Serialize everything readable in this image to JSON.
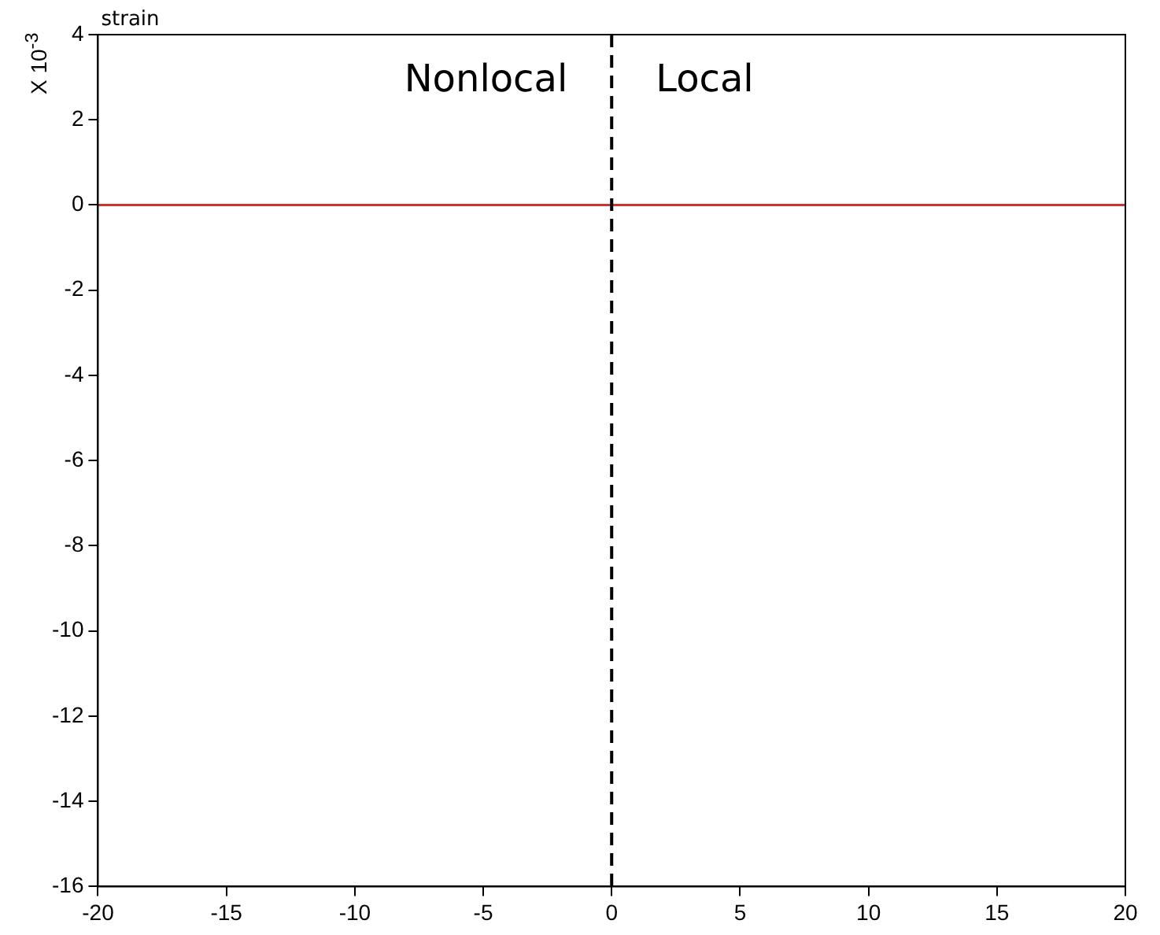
{
  "chart_data": {
    "type": "line",
    "title": "strain",
    "ylabel": "X 10$^{-3}$",
    "x": [
      -20,
      20
    ],
    "series": [
      {
        "color": "#cc3333",
        "values": [
          0,
          0
        ]
      }
    ],
    "xlim": [
      -20,
      20
    ],
    "xticks": [
      -20,
      -15,
      -10,
      -5,
      0,
      5,
      10,
      15,
      20
    ],
    "ylim": [
      -16,
      4
    ],
    "yticks": [
      -16,
      -14,
      -12,
      -10,
      -8,
      -6,
      -4,
      -2,
      0,
      2,
      4
    ],
    "ref_lines": [
      {
        "axis": "x",
        "value": 0,
        "color": "#000000",
        "line_style": "dashed"
      }
    ],
    "annotations": [
      "Nonlocal",
      "Local"
    ],
    "grid": false,
    "legend": false,
    "marker": "none",
    "line_style": "solid"
  }
}
